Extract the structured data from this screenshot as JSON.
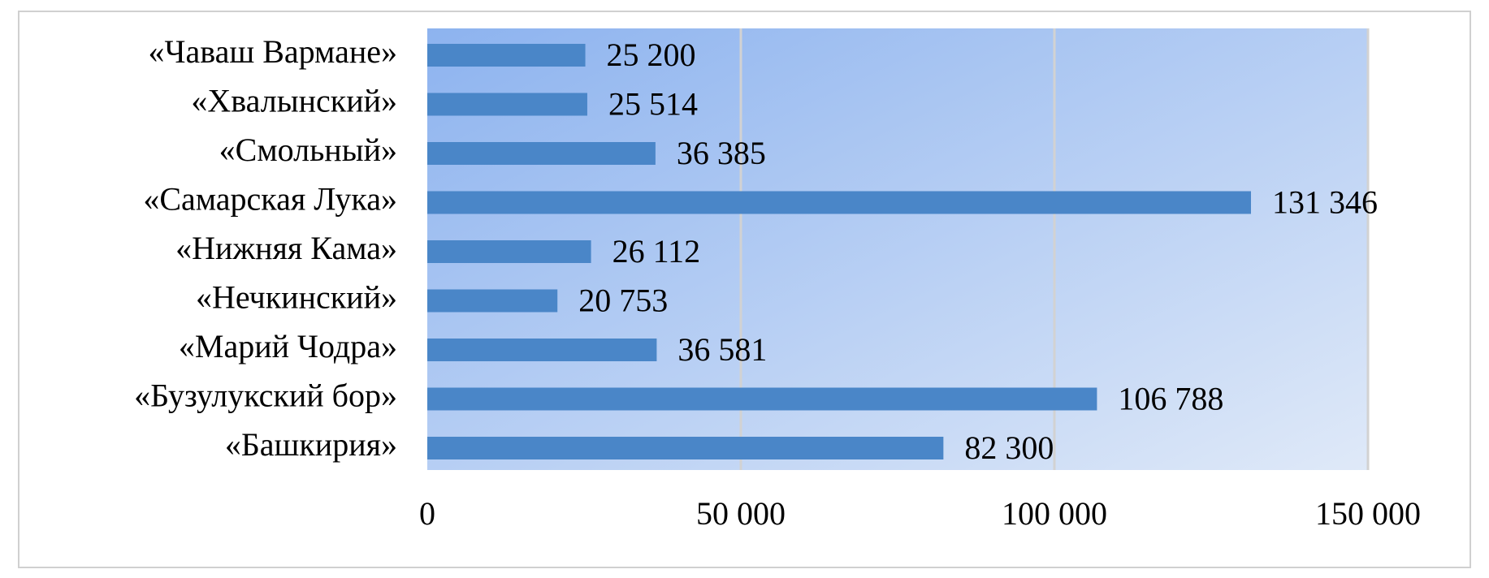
{
  "chart_data": {
    "type": "bar",
    "orientation": "horizontal",
    "categories": [
      "«Чаваш Вармане»",
      "«Хвалынский»",
      "«Смольный»",
      "«Самарская Лука»",
      "«Нижняя Кама»",
      "«Нечкинский»",
      "«Марий Чодра»",
      "«Бузулукский бор»",
      "«Башкирия»"
    ],
    "values": [
      25200,
      25514,
      36385,
      131346,
      26112,
      20753,
      36581,
      106788,
      82300
    ],
    "value_labels": [
      "25 200",
      "25 514",
      "36 385",
      "131 346",
      "26 112",
      "20 753",
      "36 581",
      "106 788",
      "82 300"
    ],
    "color": "#4a86c8",
    "xlim": [
      0,
      150000
    ],
    "xticks": [
      0,
      {
        "value": 50000,
        "label": "50 000"
      },
      {
        "value": 100000,
        "label": "100 000"
      },
      {
        "value": 150000,
        "label": "150 000"
      }
    ],
    "grid": true
  }
}
